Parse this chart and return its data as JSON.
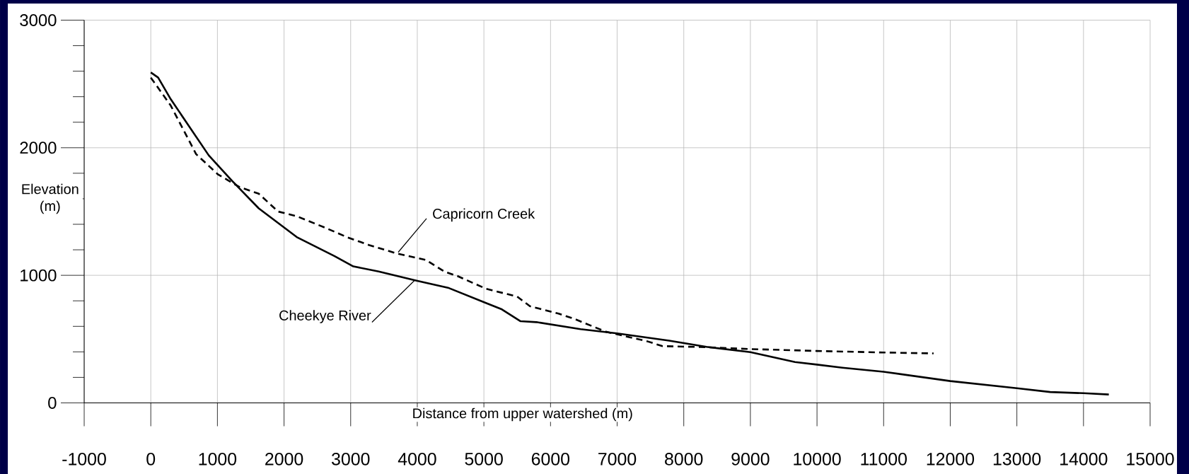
{
  "chart_data": {
    "type": "line",
    "xlabel": "Distance from upper watershed (m)",
    "ylabel": "Elevation (m)",
    "xlim": [
      -1000,
      15000
    ],
    "ylim": [
      0,
      3000
    ],
    "xticks": [
      -1000,
      0,
      1000,
      2000,
      3000,
      4000,
      5000,
      6000,
      7000,
      8000,
      9000,
      10000,
      11000,
      12000,
      13000,
      14000,
      15000
    ],
    "yticks": [
      0,
      {
        "value": 200,
        "label": null
      },
      {
        "value": 400,
        "label": null
      },
      {
        "value": 600,
        "label": null
      },
      {
        "value": 800,
        "label": null
      },
      1000,
      {
        "value": 1200,
        "label": null
      },
      {
        "value": 1400,
        "label": null
      },
      {
        "value": 1600,
        "label": null
      },
      {
        "value": 1800,
        "label": null
      },
      2000,
      {
        "value": 2200,
        "label": null
      },
      {
        "value": 2400,
        "label": null
      },
      {
        "value": 2600,
        "label": null
      },
      {
        "value": 2800,
        "label": null
      },
      3000
    ],
    "grid": true,
    "series": [
      {
        "name": "Cheekye River",
        "color": "#000000",
        "line_style": "solid",
        "x": [
          0,
          110,
          300,
          870,
          1220,
          1620,
          2190,
          2760,
          3040,
          3420,
          3990,
          4460,
          5030,
          5270,
          5550,
          5790,
          6450,
          7000,
          7780,
          8340,
          9000,
          9670,
          10000,
          10380,
          11000,
          12000,
          13000,
          13500,
          14000,
          14380
        ],
        "values": [
          2590,
          2550,
          2380,
          1940,
          1740,
          1525,
          1300,
          1150,
          1070,
          1030,
          958,
          903,
          783,
          733,
          640,
          633,
          578,
          545,
          488,
          439,
          398,
          320,
          300,
          276,
          244,
          171,
          115,
          85,
          76,
          66
        ]
      },
      {
        "name": "Capricorn Creek",
        "color": "#000000",
        "line_style": "dashed",
        "x": [
          0,
          300,
          680,
          1010,
          1340,
          1620,
          1910,
          2190,
          2610,
          2940,
          3270,
          3700,
          4130,
          4410,
          4600,
          5030,
          5500,
          5690,
          6120,
          6360,
          6830,
          7450,
          7680,
          8250,
          9000,
          10000,
          11000,
          11750
        ],
        "values": [
          2550,
          2330,
          1950,
          1790,
          1690,
          1640,
          1500,
          1463,
          1375,
          1300,
          1238,
          1170,
          1120,
          1028,
          995,
          895,
          833,
          758,
          700,
          658,
          558,
          483,
          445,
          438,
          422,
          407,
          395,
          388
        ]
      }
    ]
  }
}
